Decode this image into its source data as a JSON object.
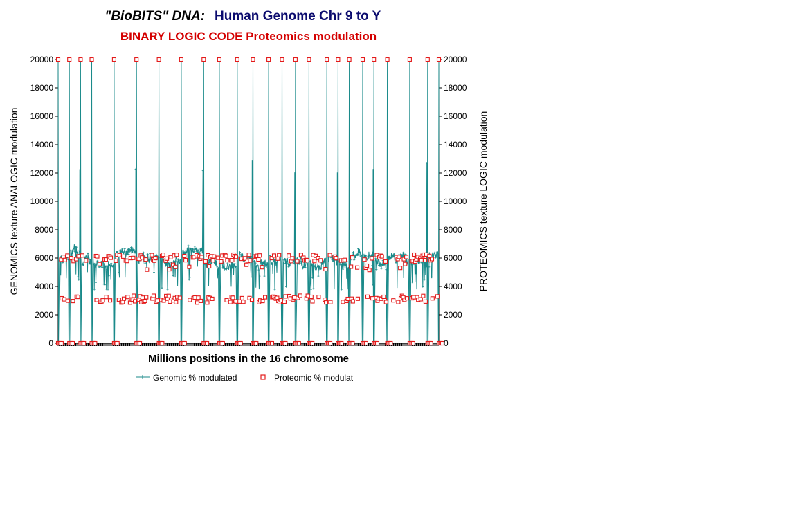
{
  "colors": {
    "genomic": "#1a8a8a",
    "proteomic": "#e31b1b",
    "title_black": "#000000",
    "title_navy": "#0b0b6e",
    "subtitle_red": "#d40000"
  },
  "chart_data": {
    "type": "line",
    "title_part1": "\"BioBITS\" DNA:",
    "title_part2": "Human Genome Chr 9 to Y",
    "subtitle": "BINARY LOGIC CODE Proteomics modulation",
    "xlabel": "Millions positions in the 16 chromosome",
    "ylabel_left": "GENOMICS texture ANALOGIC modulation",
    "ylabel_right": "PROTEOMICS texture LOGIC modulation",
    "ylim": [
      0,
      20000
    ],
    "yticks": [
      "0",
      "2000",
      "4000",
      "6000",
      "8000",
      "10000",
      "12000",
      "14000",
      "16000",
      "18000",
      "20000"
    ],
    "grid": false,
    "legend_position": "bottom",
    "series": [
      {
        "name": "Genomic % modulated",
        "marker": "plus",
        "typical_level": 6000,
        "range": [
          3800,
          7200
        ],
        "spike_max": 20000
      },
      {
        "name": "Proteomic % modulat",
        "marker": "square",
        "bands": [
          3000,
          6000
        ],
        "spike_max": 20000
      }
    ],
    "chromosome_separator_positions": [
      0,
      5,
      10,
      15,
      25,
      35,
      45,
      55,
      65,
      72,
      80,
      87,
      94,
      100,
      106,
      112,
      120,
      125,
      130,
      136,
      141,
      147,
      157,
      165,
      170
    ]
  }
}
